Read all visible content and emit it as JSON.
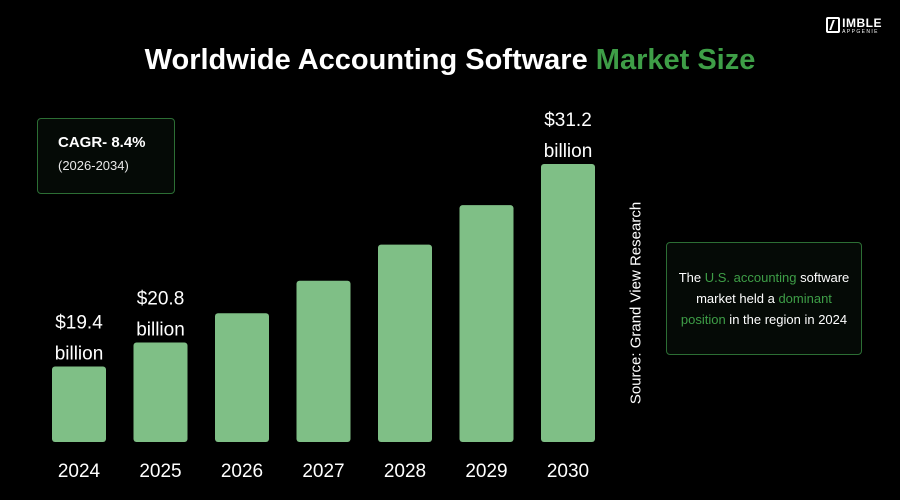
{
  "header": {
    "title_main": "Worldwide Accounting Software",
    "title_accent": "Market Size"
  },
  "logo": {
    "main": "IMBLE",
    "sub": "APPGENIE"
  },
  "cagr": {
    "value": "CAGR- 8.4%",
    "period": "(2026-2034)"
  },
  "source": "Source: Grand View Research",
  "note": {
    "part1": "The ",
    "highlight1": "U.S. accounting",
    "part2": " software market held a ",
    "highlight2": "dominant position",
    "part3": " in the region in 2024"
  },
  "colors": {
    "bar": "#7fbf86",
    "accent": "#3e9e47",
    "background": "#000000"
  },
  "chart_data": {
    "type": "bar",
    "categories": [
      "2024",
      "2025",
      "2026",
      "2027",
      "2028",
      "2029",
      "2030"
    ],
    "values": [
      19.4,
      20.8,
      22.5,
      24.4,
      26.5,
      28.8,
      31.2
    ],
    "value_labels": [
      [
        "$19.4",
        "billion"
      ],
      [
        "$20.8",
        "billion"
      ],
      null,
      null,
      null,
      null,
      [
        "$31.2",
        "billion"
      ]
    ],
    "unit": "billion",
    "ylim": [
      15,
      31.2
    ],
    "grid": false
  }
}
